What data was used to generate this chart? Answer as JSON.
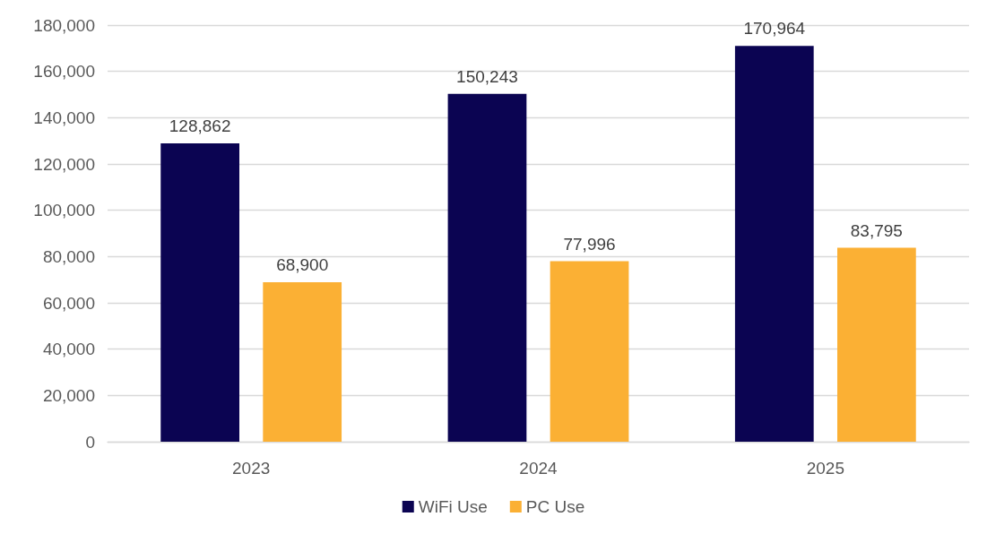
{
  "chart_data": {
    "type": "bar",
    "categories": [
      "2023",
      "2024",
      "2025"
    ],
    "series": [
      {
        "name": "WiFi Use",
        "color": "#0b0452",
        "values": [
          128862,
          150243,
          170964
        ],
        "value_labels": [
          "128,862",
          "150,243",
          "170,964"
        ]
      },
      {
        "name": "PC Use",
        "color": "#fbb034",
        "values": [
          68900,
          77996,
          83795
        ],
        "value_labels": [
          "68,900",
          "77,996",
          "83,795"
        ]
      }
    ],
    "ylim": [
      0,
      180000
    ],
    "yticks": [
      {
        "value": 0,
        "label": "0"
      },
      {
        "value": 20000,
        "label": "20,000"
      },
      {
        "value": 40000,
        "label": "40,000"
      },
      {
        "value": 60000,
        "label": "60,000"
      },
      {
        "value": 80000,
        "label": "80,000"
      },
      {
        "value": 100000,
        "label": "100,000"
      },
      {
        "value": 120000,
        "label": "120,000"
      },
      {
        "value": 140000,
        "label": "140,000"
      },
      {
        "value": 160000,
        "label": "160,000"
      },
      {
        "value": 180000,
        "label": "180,000"
      }
    ],
    "grid": "y",
    "legend": "bottom"
  }
}
